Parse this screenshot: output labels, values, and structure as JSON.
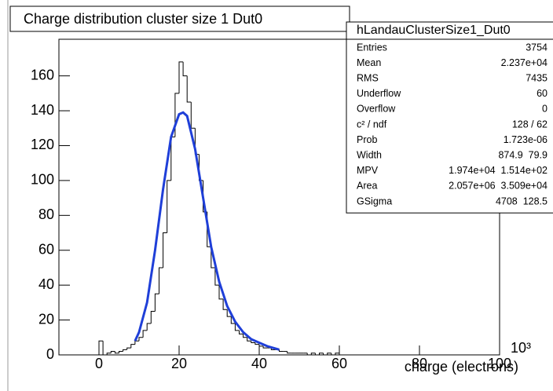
{
  "chart_data": {
    "type": "histogram",
    "title": "Charge distribution cluster size 1 Dut0",
    "xlabel": "charge (electrons)",
    "x_exponent": "10³",
    "xlim": [
      -10,
      100
    ],
    "ylim": [
      0,
      181
    ],
    "xticks": [
      0,
      20,
      40,
      60,
      80,
      100
    ],
    "yticks": [
      0,
      20,
      40,
      60,
      80,
      100,
      120,
      140,
      160
    ],
    "color": "#000000",
    "bins": [
      0,
      1,
      2,
      3,
      4,
      5,
      6,
      7,
      8,
      9,
      10,
      11,
      12,
      13,
      14,
      15,
      16,
      17,
      18,
      19,
      20,
      21,
      22,
      23,
      24,
      25,
      26,
      27,
      28,
      29,
      30,
      31,
      32,
      33,
      34,
      35,
      36,
      37,
      38,
      39,
      40,
      41,
      42,
      43,
      44,
      45,
      46,
      47,
      48,
      49,
      50,
      51,
      52,
      53,
      54,
      55,
      56,
      57,
      58,
      59,
      60,
      61,
      62,
      63,
      64,
      65,
      66,
      67,
      68,
      69,
      70
    ],
    "counts": [
      8,
      0,
      1,
      2,
      1,
      2,
      3,
      4,
      6,
      8,
      10,
      14,
      18,
      25,
      35,
      50,
      70,
      100,
      125,
      150,
      168,
      160,
      145,
      130,
      115,
      100,
      82,
      62,
      50,
      40,
      32,
      26,
      22,
      18,
      14,
      12,
      10,
      8,
      7,
      6,
      5,
      4,
      4,
      3,
      3,
      2,
      2,
      1,
      1,
      1,
      1,
      1,
      0,
      1,
      0,
      1,
      0,
      1,
      0,
      1,
      0,
      0,
      0,
      0,
      0,
      0,
      0,
      0,
      0,
      0
    ],
    "fit": {
      "color": "#1f3fd8",
      "x": [
        9,
        10,
        12,
        14,
        16,
        18,
        20,
        21,
        22,
        24,
        26,
        28,
        30,
        32,
        34,
        36,
        38,
        40,
        42,
        45
      ],
      "values": [
        8,
        13,
        30,
        60,
        95,
        125,
        138,
        139,
        137,
        118,
        90,
        62,
        42,
        28,
        19,
        13,
        9,
        7,
        5,
        3
      ]
    },
    "stats": {
      "title": "hLandauClusterSize1_Dut0",
      "rows": [
        [
          "Entries",
          "3754"
        ],
        [
          "Mean",
          "2.237e+04"
        ],
        [
          "RMS",
          "7435"
        ],
        [
          "Underflow",
          "60"
        ],
        [
          "Overflow",
          "0"
        ],
        [
          "c² / ndf",
          "128 / 62"
        ],
        [
          "Prob",
          "1.723e-06"
        ],
        [
          "Width",
          "874.9  79.9"
        ],
        [
          "MPV",
          "1.974e+04  1.514e+02"
        ],
        [
          "Area",
          "2.057e+06  3.509e+04"
        ],
        [
          "GSigma",
          "4708  128.5"
        ]
      ]
    }
  }
}
